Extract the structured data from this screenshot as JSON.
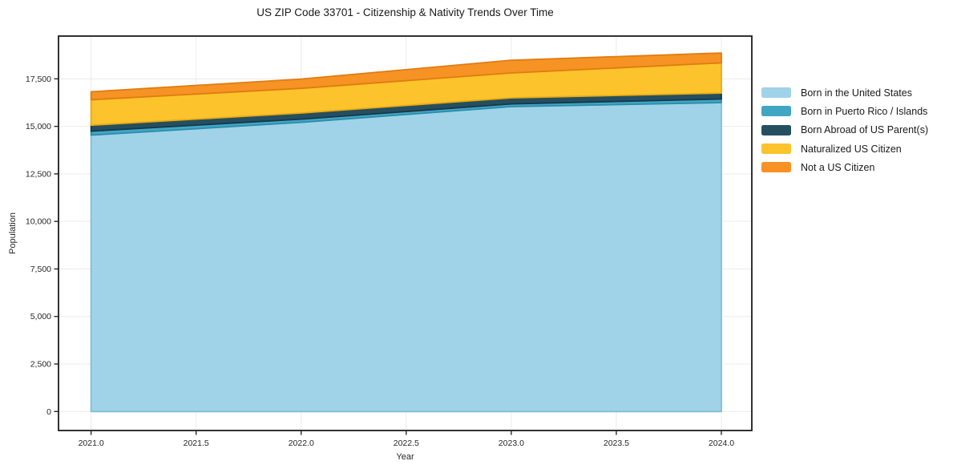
{
  "title": "US ZIP Code 33701 - Citizenship & Nativity Trends Over Time",
  "chart_data": {
    "type": "area",
    "stacked": true,
    "title": "US ZIP Code 33701 - Citizenship & Nativity Trends Over Time",
    "xlabel": "Year",
    "ylabel": "Population",
    "x": [
      2021,
      2022,
      2023,
      2024
    ],
    "series": [
      {
        "name": "Born in the United States",
        "key": "born-us",
        "color": "#a0d3e8",
        "edge": "#7fbedb",
        "values": [
          14540,
          15210,
          16040,
          16250
        ]
      },
      {
        "name": "Born in Puerto Rico / Islands",
        "key": "born-pr",
        "color": "#41a6c4",
        "edge": "#2c8cab",
        "values": [
          210,
          170,
          140,
          190
        ]
      },
      {
        "name": "Born Abroad of US Parent(s)",
        "key": "born-abroad",
        "color": "#254f60",
        "edge": "#16384a",
        "values": [
          310,
          320,
          320,
          310
        ]
      },
      {
        "name": "Naturalized US Citizen",
        "key": "naturalized",
        "color": "#fcc32d",
        "edge": "#e8ab12",
        "values": [
          1340,
          1300,
          1310,
          1590
        ]
      },
      {
        "name": "Not a US Citizen",
        "key": "not-citizen",
        "color": "#f79324",
        "edge": "#e07c10",
        "values": [
          420,
          490,
          670,
          520
        ]
      }
    ],
    "x_ticks": [
      {
        "v": 2021.0,
        "label": "2021.0"
      },
      {
        "v": 2021.5,
        "label": "2021.5"
      },
      {
        "v": 2022.0,
        "label": "2022.0"
      },
      {
        "v": 2022.5,
        "label": "2022.5"
      },
      {
        "v": 2023.0,
        "label": "2023.0"
      },
      {
        "v": 2023.5,
        "label": "2023.5"
      },
      {
        "v": 2024.0,
        "label": "2024.0"
      }
    ],
    "y_ticks": [
      {
        "v": 0,
        "label": "0"
      },
      {
        "v": 2500,
        "label": "2,500"
      },
      {
        "v": 5000,
        "label": "5,000"
      },
      {
        "v": 7500,
        "label": "7,500"
      },
      {
        "v": 10000,
        "label": "10,000"
      },
      {
        "v": 12500,
        "label": "12,500"
      },
      {
        "v": 15000,
        "label": "15,000"
      },
      {
        "v": 17500,
        "label": "17,500"
      }
    ],
    "x_range": [
      2020.845,
      2024.145
    ],
    "y_range": [
      -1000,
      19750
    ],
    "grid": true,
    "legend_position": "right-outside"
  },
  "colors": {
    "background": "#ffffff",
    "grid": "#ececec",
    "spine": "#1c1c1c",
    "tick": "#262626",
    "tick_text": "#262626",
    "title_text": "#1a1a1a"
  }
}
